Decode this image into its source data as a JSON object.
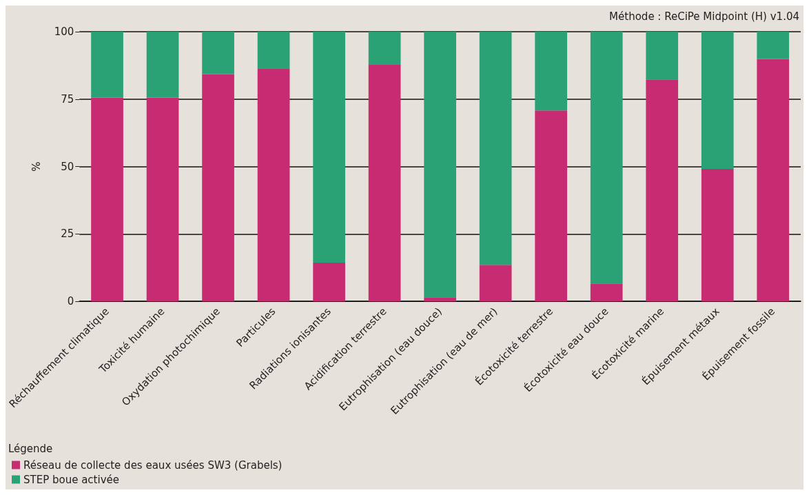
{
  "chart_data": {
    "type": "bar",
    "stacked": true,
    "ylabel": "%",
    "legend_title": "Légende",
    "legend": "bottom left",
    "grid": "y",
    "annotations": [
      "Méthode : ReCiPe Midpoint (H) v1.04"
    ],
    "categories": [
      "Réchauffement climatique",
      "Toxicité humaine",
      "Oxydation photochimique",
      "Particules",
      "Radiations ionisantes",
      "Acidification terrestre",
      "Eutrophisation (eau douce)",
      "Eutrophisation (eau de mer)",
      "Écotoxicité terrestre",
      "Écotoxicité eau douce",
      "Écotoxicité marine",
      "Épuisement métaux",
      "Épuisement fossile"
    ],
    "series": [
      {
        "name": "Réseau de collecte des eaux usées SW3 (Grabels)",
        "color": "#c72c72",
        "values": [
          75.5,
          75.5,
          84.3,
          86.2,
          14.3,
          87.7,
          1.5,
          13.5,
          70.8,
          6.6,
          82.3,
          49.1,
          89.9
        ]
      },
      {
        "name": "STEP boue activée",
        "color": "#2aa276",
        "values": [
          24.5,
          24.5,
          15.7,
          13.8,
          85.7,
          12.3,
          98.5,
          86.5,
          29.2,
          93.4,
          17.7,
          50.9,
          10.1
        ]
      }
    ],
    "ylim": [
      0,
      100
    ],
    "yticks": [
      0,
      25,
      50,
      75,
      100
    ]
  }
}
